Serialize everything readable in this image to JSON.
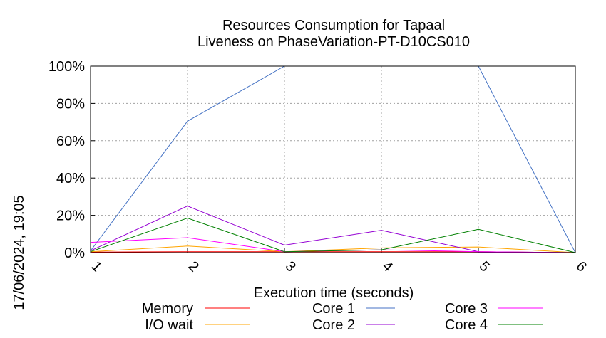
{
  "chart_data": {
    "type": "line",
    "title": [
      "Resources Consumption for Tapaal",
      "Liveness on PhaseVariation-PT-D10CS010"
    ],
    "xlabel": "Execution time (seconds)",
    "ylabel": "",
    "timestamp": "17/06/2024, 19:05",
    "x": [
      1,
      2,
      3,
      4,
      5,
      6
    ],
    "x_ticks": [
      "1",
      "2",
      "3",
      "4",
      "5",
      "6"
    ],
    "xlim": [
      1,
      6
    ],
    "ylim": [
      0,
      100
    ],
    "y_ticks": [
      {
        "value": 0,
        "label": "0%"
      },
      {
        "value": 20,
        "label": "20%"
      },
      {
        "value": 40,
        "label": "40%"
      },
      {
        "value": 60,
        "label": "60%"
      },
      {
        "value": 80,
        "label": "80%"
      },
      {
        "value": 100,
        "label": "100%"
      }
    ],
    "grid": true,
    "legend_position": "bottom",
    "series": [
      {
        "name": "Memory",
        "color": "#ff0000",
        "values": [
          0.3,
          0.5,
          0.5,
          0.5,
          0.5,
          0
        ]
      },
      {
        "name": "I/O wait",
        "color": "#ffa500",
        "values": [
          0.5,
          3.5,
          0.5,
          2.5,
          3,
          0
        ]
      },
      {
        "name": "Core 1",
        "color": "#4472c4",
        "values": [
          1,
          70.5,
          100,
          100,
          100,
          0
        ]
      },
      {
        "name": "Core 2",
        "color": "#9400d3",
        "values": [
          1,
          25,
          4,
          12,
          0.5,
          0
        ]
      },
      {
        "name": "Core 3",
        "color": "#ff00ff",
        "values": [
          5.5,
          8,
          0.5,
          1.5,
          0.5,
          0
        ]
      },
      {
        "name": "Core 4",
        "color": "#008000",
        "values": [
          0.5,
          18.5,
          0.5,
          1.5,
          12.5,
          0
        ]
      }
    ]
  }
}
